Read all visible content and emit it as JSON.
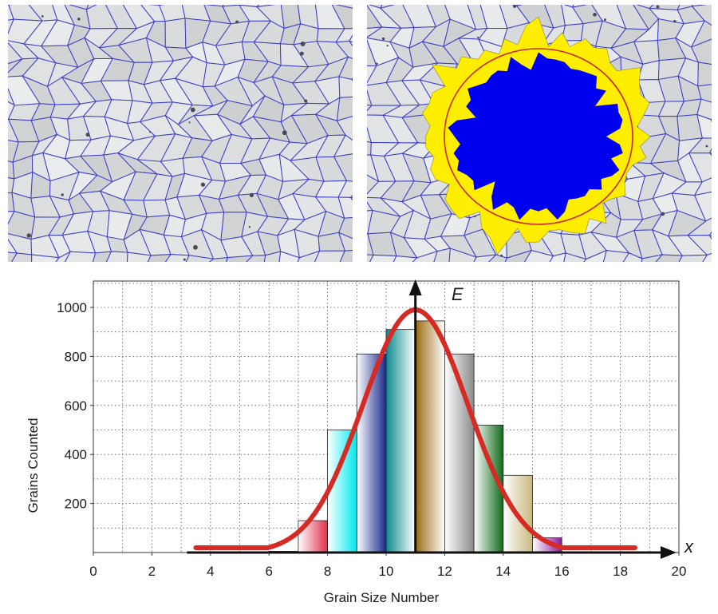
{
  "images": {
    "left": {
      "name": "grain-boundary-micrograph",
      "boundary_color": "#3a3fc4",
      "background_color": "#d9dadb"
    },
    "right": {
      "name": "grain-counting-overlay",
      "boundary_color": "#3a3fc4",
      "fill_inside_color": "#0000f0",
      "fill_edge_color": "#ffee00",
      "circle_color": "#c8282d"
    }
  },
  "chart_data": {
    "type": "bar",
    "title": "",
    "xlabel": "Grain Size Number",
    "ylabel": "Grains Counted",
    "xlim": [
      0,
      20
    ],
    "ylim": [
      0,
      1000
    ],
    "x_ticks": [
      "0",
      "2",
      "4",
      "6",
      "8",
      "10",
      "12",
      "14",
      "16",
      "18",
      "20"
    ],
    "y_ticks": [
      "200",
      "400",
      "600",
      "800",
      "1000"
    ],
    "grid": true,
    "axis_letters": {
      "vertical": "E",
      "horizontal": "x"
    },
    "bars": [
      {
        "x_start": 6,
        "x_end": 7,
        "value": 5,
        "colors": [
          "#ffffff",
          "#dddddd"
        ]
      },
      {
        "x_start": 7,
        "x_end": 8,
        "value": 130,
        "colors": [
          "#ffffff",
          "#e0304a"
        ]
      },
      {
        "x_start": 8,
        "x_end": 9,
        "value": 500,
        "colors": [
          "#ffffff",
          "#00e8f0"
        ]
      },
      {
        "x_start": 9,
        "x_end": 10,
        "value": 810,
        "colors": [
          "#ffffff",
          "#1a2a8c"
        ]
      },
      {
        "x_start": 10,
        "x_end": 11,
        "value": 910,
        "colors": [
          "#0c8a90",
          "#ffffff"
        ]
      },
      {
        "x_start": 11,
        "x_end": 12,
        "value": 945,
        "colors": [
          "#9a6a10",
          "#ffffff"
        ]
      },
      {
        "x_start": 12,
        "x_end": 13,
        "value": 810,
        "colors": [
          "#ffffff",
          "#8a8a8a"
        ]
      },
      {
        "x_start": 13,
        "x_end": 14,
        "value": 520,
        "colors": [
          "#ffffff",
          "#0e6a18"
        ]
      },
      {
        "x_start": 14,
        "x_end": 15,
        "value": 315,
        "colors": [
          "#ffffff",
          "#c8b880"
        ]
      },
      {
        "x_start": 15,
        "x_end": 16,
        "value": 60,
        "colors": [
          "#ffffff",
          "#8a1a9a"
        ]
      }
    ],
    "curve": {
      "type": "normal",
      "mean": 11,
      "sd": 1.8,
      "peak": 990,
      "x_range": [
        3.5,
        18.5
      ],
      "color": "#d62b25"
    },
    "vertical_axis_line_x": 11
  }
}
